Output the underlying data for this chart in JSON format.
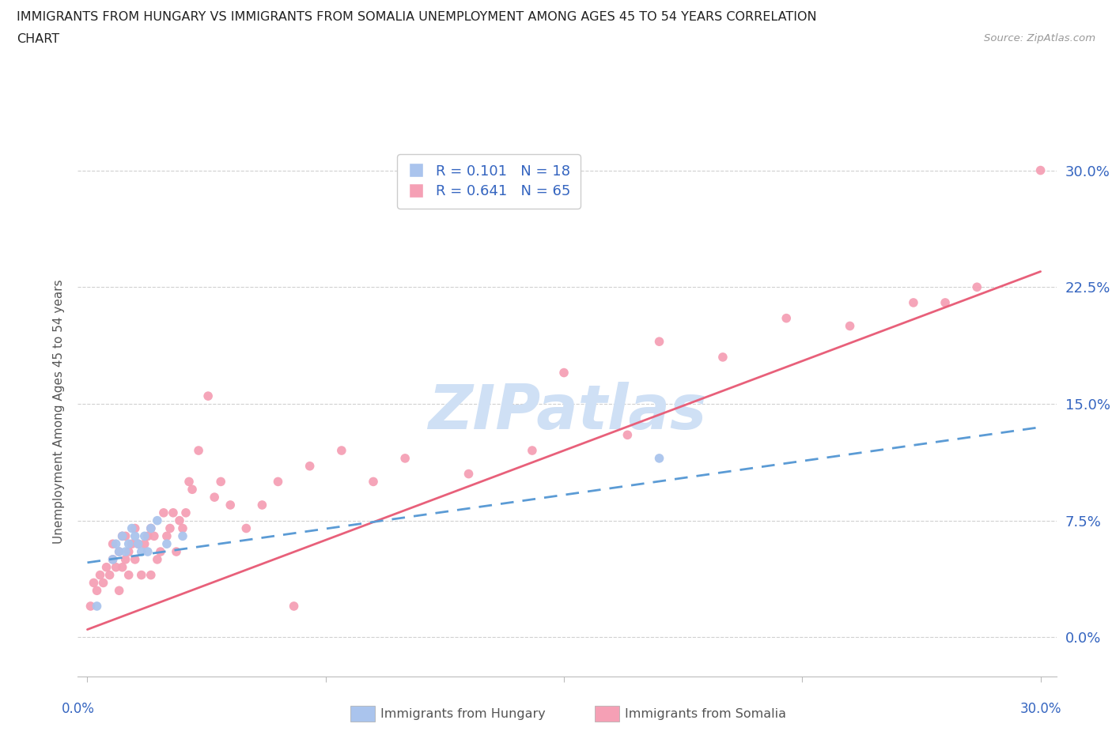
{
  "title_line1": "IMMIGRANTS FROM HUNGARY VS IMMIGRANTS FROM SOMALIA UNEMPLOYMENT AMONG AGES 45 TO 54 YEARS CORRELATION",
  "title_line2": "CHART",
  "source_text": "Source: ZipAtlas.com",
  "ylabel": "Unemployment Among Ages 45 to 54 years",
  "ytick_labels": [
    "0.0%",
    "7.5%",
    "15.0%",
    "22.5%",
    "30.0%"
  ],
  "ytick_values": [
    0.0,
    0.075,
    0.15,
    0.225,
    0.3
  ],
  "xtick_values": [
    0.0,
    0.075,
    0.15,
    0.225,
    0.3
  ],
  "xlim": [
    -0.003,
    0.305
  ],
  "ylim": [
    -0.025,
    0.315
  ],
  "hungary_R": 0.101,
  "hungary_N": 18,
  "somalia_R": 0.641,
  "somalia_N": 65,
  "hungary_color": "#aac4ed",
  "somalia_color": "#f5a0b5",
  "hungary_line_color": "#5b9bd5",
  "somalia_line_color": "#e8607a",
  "watermark_color": "#cfe0f5",
  "legend_label_hungary": "Immigrants from Hungary",
  "legend_label_somalia": "Immigrants from Somalia",
  "hungary_x": [
    0.003,
    0.008,
    0.009,
    0.01,
    0.011,
    0.012,
    0.013,
    0.014,
    0.015,
    0.016,
    0.017,
    0.018,
    0.019,
    0.02,
    0.022,
    0.025,
    0.03,
    0.18
  ],
  "hungary_y": [
    0.02,
    0.05,
    0.06,
    0.055,
    0.065,
    0.055,
    0.06,
    0.07,
    0.065,
    0.06,
    0.055,
    0.065,
    0.055,
    0.07,
    0.075,
    0.06,
    0.065,
    0.115
  ],
  "somalia_x": [
    0.001,
    0.002,
    0.003,
    0.004,
    0.005,
    0.006,
    0.007,
    0.008,
    0.008,
    0.009,
    0.01,
    0.01,
    0.011,
    0.011,
    0.012,
    0.012,
    0.013,
    0.013,
    0.014,
    0.015,
    0.015,
    0.016,
    0.017,
    0.018,
    0.019,
    0.02,
    0.02,
    0.021,
    0.022,
    0.023,
    0.024,
    0.025,
    0.026,
    0.027,
    0.028,
    0.029,
    0.03,
    0.031,
    0.032,
    0.033,
    0.035,
    0.038,
    0.04,
    0.042,
    0.045,
    0.05,
    0.055,
    0.06,
    0.065,
    0.07,
    0.08,
    0.09,
    0.1,
    0.12,
    0.14,
    0.15,
    0.17,
    0.18,
    0.2,
    0.22,
    0.24,
    0.26,
    0.27,
    0.28,
    0.3
  ],
  "somalia_y": [
    0.02,
    0.035,
    0.03,
    0.04,
    0.035,
    0.045,
    0.04,
    0.05,
    0.06,
    0.045,
    0.03,
    0.055,
    0.045,
    0.065,
    0.05,
    0.065,
    0.055,
    0.04,
    0.06,
    0.05,
    0.07,
    0.06,
    0.04,
    0.06,
    0.065,
    0.04,
    0.07,
    0.065,
    0.05,
    0.055,
    0.08,
    0.065,
    0.07,
    0.08,
    0.055,
    0.075,
    0.07,
    0.08,
    0.1,
    0.095,
    0.12,
    0.155,
    0.09,
    0.1,
    0.085,
    0.07,
    0.085,
    0.1,
    0.02,
    0.11,
    0.12,
    0.1,
    0.115,
    0.105,
    0.12,
    0.17,
    0.13,
    0.19,
    0.18,
    0.205,
    0.2,
    0.215,
    0.215,
    0.225,
    0.3
  ],
  "somalia_line_x": [
    0.0,
    0.3
  ],
  "somalia_line_y": [
    0.005,
    0.235
  ],
  "hungary_line_x": [
    0.0,
    0.3
  ],
  "hungary_line_y": [
    0.048,
    0.135
  ]
}
